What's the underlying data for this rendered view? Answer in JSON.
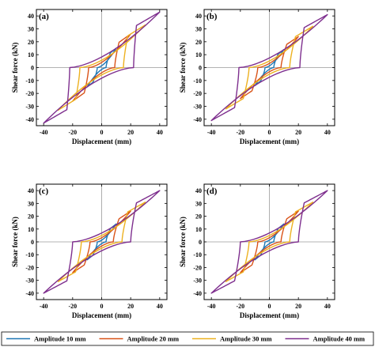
{
  "chart_data": [
    {
      "type": "line",
      "panel_label": "(a)",
      "xlabel": "Displacement (mm)",
      "ylabel": "Shear force (kN)",
      "xlim": [
        -45,
        45
      ],
      "ylim": [
        -45,
        45
      ],
      "xticks": [
        -40,
        -20,
        0,
        20,
        40
      ],
      "yticks": [
        -40,
        -30,
        -20,
        -10,
        0,
        10,
        20,
        30,
        40
      ],
      "zero_lines": true,
      "series": [
        {
          "name": "Amplitude 10 mm",
          "amplitude": 10,
          "peak_force": 15,
          "intercept_force": 6,
          "zero_force_disp": 3
        },
        {
          "name": "Amplitude 20 mm",
          "amplitude": 20,
          "peak_force": 26,
          "intercept_force": 10,
          "zero_force_disp": 9
        },
        {
          "name": "Amplitude 30 mm",
          "amplitude": 30,
          "peak_force": 33,
          "intercept_force": 12,
          "zero_force_disp": 15
        },
        {
          "name": "Amplitude 40 mm",
          "amplitude": 40,
          "peak_force": 43,
          "intercept_force": 17,
          "zero_force_disp": 22
        }
      ]
    },
    {
      "type": "line",
      "panel_label": "(b)",
      "xlabel": "Displacement (mm)",
      "ylabel": "Shear force (kN)",
      "xlim": [
        -45,
        45
      ],
      "ylim": [
        -45,
        45
      ],
      "xticks": [
        -40,
        -20,
        0,
        20,
        40
      ],
      "yticks": [
        -40,
        -30,
        -20,
        -10,
        0,
        10,
        20,
        30,
        40
      ],
      "zero_lines": true,
      "series": [
        {
          "name": "Amplitude 10 mm",
          "amplitude": 10,
          "peak_force": 14,
          "intercept_force": 5,
          "zero_force_disp": 3
        },
        {
          "name": "Amplitude 20 mm",
          "amplitude": 20,
          "peak_force": 24,
          "intercept_force": 9,
          "zero_force_disp": 8
        },
        {
          "name": "Amplitude 30 mm",
          "amplitude": 30,
          "peak_force": 32,
          "intercept_force": 12,
          "zero_force_disp": 14
        },
        {
          "name": "Amplitude 40 mm",
          "amplitude": 40,
          "peak_force": 41,
          "intercept_force": 16,
          "zero_force_disp": 21
        }
      ]
    },
    {
      "type": "line",
      "panel_label": "(c)",
      "xlabel": "Displacement (mm)",
      "ylabel": "Shear force (kN)",
      "xlim": [
        -45,
        45
      ],
      "ylim": [
        -45,
        45
      ],
      "xticks": [
        -40,
        -20,
        0,
        20,
        40
      ],
      "yticks": [
        -40,
        -30,
        -20,
        -10,
        0,
        10,
        20,
        30,
        40
      ],
      "zero_lines": true,
      "series": [
        {
          "name": "Amplitude 10 mm",
          "amplitude": 10,
          "peak_force": 14,
          "intercept_force": 5,
          "zero_force_disp": 3
        },
        {
          "name": "Amplitude 20 mm",
          "amplitude": 20,
          "peak_force": 24,
          "intercept_force": 9,
          "zero_force_disp": 8
        },
        {
          "name": "Amplitude 30 mm",
          "amplitude": 30,
          "peak_force": 31,
          "intercept_force": 12,
          "zero_force_disp": 14
        },
        {
          "name": "Amplitude 40 mm",
          "amplitude": 40,
          "peak_force": 40,
          "intercept_force": 16,
          "zero_force_disp": 20
        }
      ]
    },
    {
      "type": "line",
      "panel_label": "(d)",
      "xlabel": "Displacement (mm)",
      "ylabel": "Shear force (kN)",
      "xlim": [
        -45,
        45
      ],
      "ylim": [
        -45,
        45
      ],
      "xticks": [
        -40,
        -20,
        0,
        20,
        40
      ],
      "yticks": [
        -40,
        -30,
        -20,
        -10,
        0,
        10,
        20,
        30,
        40
      ],
      "zero_lines": true,
      "series": [
        {
          "name": "Amplitude 10 mm",
          "amplitude": 10,
          "peak_force": 14,
          "intercept_force": 5,
          "zero_force_disp": 3
        },
        {
          "name": "Amplitude 20 mm",
          "amplitude": 20,
          "peak_force": 24,
          "intercept_force": 9,
          "zero_force_disp": 8
        },
        {
          "name": "Amplitude 30 mm",
          "amplitude": 30,
          "peak_force": 31,
          "intercept_force": 12,
          "zero_force_disp": 14
        },
        {
          "name": "Amplitude 40 mm",
          "amplitude": 40,
          "peak_force": 40,
          "intercept_force": 16,
          "zero_force_disp": 20
        }
      ]
    }
  ],
  "legend": {
    "position": "bottom",
    "items": [
      {
        "label": "Amplitude 10 mm",
        "color": "#1f77b4"
      },
      {
        "label": "Amplitude 20 mm",
        "color": "#d95319"
      },
      {
        "label": "Amplitude 30 mm",
        "color": "#edb120"
      },
      {
        "label": "Amplitude 40 mm",
        "color": "#7e2f8e"
      }
    ]
  },
  "colors": {
    "Amplitude 10 mm": "#1f77b4",
    "Amplitude 20 mm": "#d95319",
    "Amplitude 30 mm": "#edb120",
    "Amplitude 40 mm": "#7e2f8e",
    "axis": "#000000",
    "zero_line": "#9a9a9a"
  }
}
